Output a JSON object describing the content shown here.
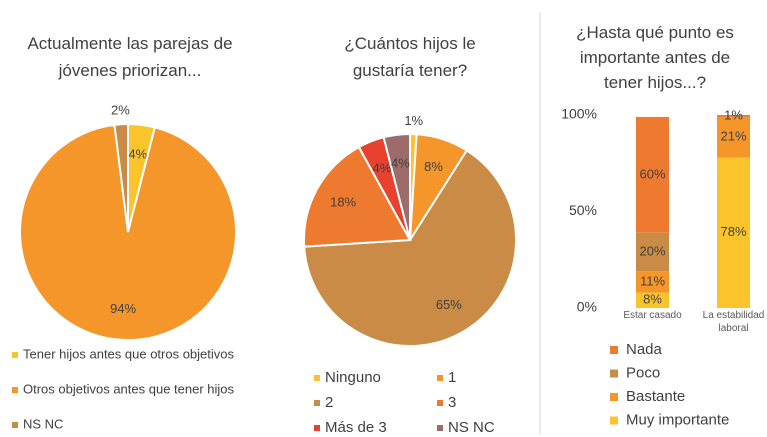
{
  "chart_data": [
    {
      "type": "pie",
      "title": "Actualmente las parejas de jóvenes priorizan...",
      "categories": [
        "Tener hijos antes que otros objetivos",
        "Otros objetivos antes que tener hijos",
        "NS NC"
      ],
      "values": [
        4,
        94,
        2
      ],
      "value_labels": [
        "4%",
        "94%",
        "2%"
      ],
      "colors": [
        "#fcc42c",
        "#f5962a",
        "#c98b45"
      ]
    },
    {
      "type": "pie",
      "title": "¿Cuántos hijos le gustaría tener?",
      "categories": [
        "Ninguno",
        "1",
        "2",
        "3",
        "Más de 3",
        "NS NC"
      ],
      "values": [
        1,
        8,
        65,
        18,
        4,
        4
      ],
      "value_labels": [
        "1%",
        "8%",
        "65%",
        "18%",
        "4%",
        "4%"
      ],
      "colors": [
        "#fcc42c",
        "#f5962a",
        "#c98b45",
        "#ee7a30",
        "#e8412d",
        "#9e6b6b"
      ]
    },
    {
      "type": "stacked_bar",
      "title": "¿Hasta qué punto es importante antes de tener hijos...?",
      "categories": [
        "Estar casado",
        "La estabilidad laboral"
      ],
      "series": [
        {
          "name": "Muy importante",
          "color": "#fcc42c",
          "values": [
            8,
            78
          ],
          "value_labels": [
            "8%",
            "78%"
          ]
        },
        {
          "name": "Bastante",
          "color": "#f5962a",
          "values": [
            11,
            21
          ],
          "value_labels": [
            "11%",
            "21%"
          ]
        },
        {
          "name": "Poco",
          "color": "#c98b45",
          "values": [
            20,
            null
          ],
          "value_labels": [
            "20%",
            null
          ]
        },
        {
          "name": "Nada",
          "color": "#ee7a30",
          "values": [
            60,
            1
          ],
          "value_labels": [
            "60%",
            "1%"
          ]
        }
      ],
      "ylim": [
        0,
        100
      ],
      "yticks": [
        {
          "value": 0,
          "label": "0%"
        },
        {
          "value": 50,
          "label": "50%"
        },
        {
          "value": 100,
          "label": "100%"
        }
      ]
    }
  ]
}
